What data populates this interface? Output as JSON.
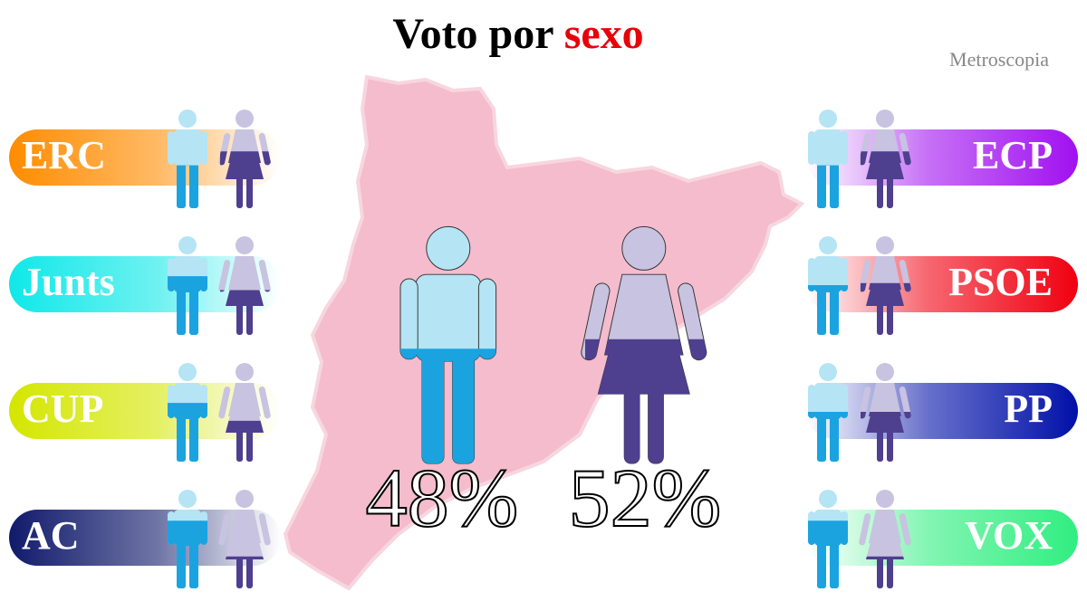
{
  "chart_data": {
    "type": "pictogram",
    "title": "Voto por",
    "title_highlight": "sexo",
    "source": "Metroscopia",
    "values": [
      48,
      52
    ],
    "value_labels": [
      "48%",
      "52%"
    ],
    "colors": {
      "men": [
        "#b5e4f4",
        "#1ba3e0"
      ],
      "women": [
        "#c8c3e0",
        "#4e3f8f"
      ]
    },
    "parties": [
      {
        "name": "ERC",
        "color": "#ff8c00",
        "values": [
          43,
          57
        ]
      },
      {
        "name": "Junts",
        "color": "#10e8e8",
        "values": [
          59,
          45
        ]
      },
      {
        "name": "CUP",
        "color": "#d4e600",
        "values": [
          59,
          41
        ]
      },
      {
        "name": "AC",
        "color": "#101a6b",
        "values": [
          68,
          32
        ]
      },
      {
        "name": "ECP",
        "color": "#a010f0",
        "values": [
          43,
          57
        ]
      },
      {
        "name": "PSOE",
        "color": "#f00010",
        "values": [
          50,
          52
        ]
      },
      {
        "name": "PP",
        "color": "#0010a8",
        "values": [
          50,
          50
        ]
      },
      {
        "name": "VOX",
        "color": "#30ee80",
        "values": [
          68,
          32
        ]
      }
    ]
  }
}
